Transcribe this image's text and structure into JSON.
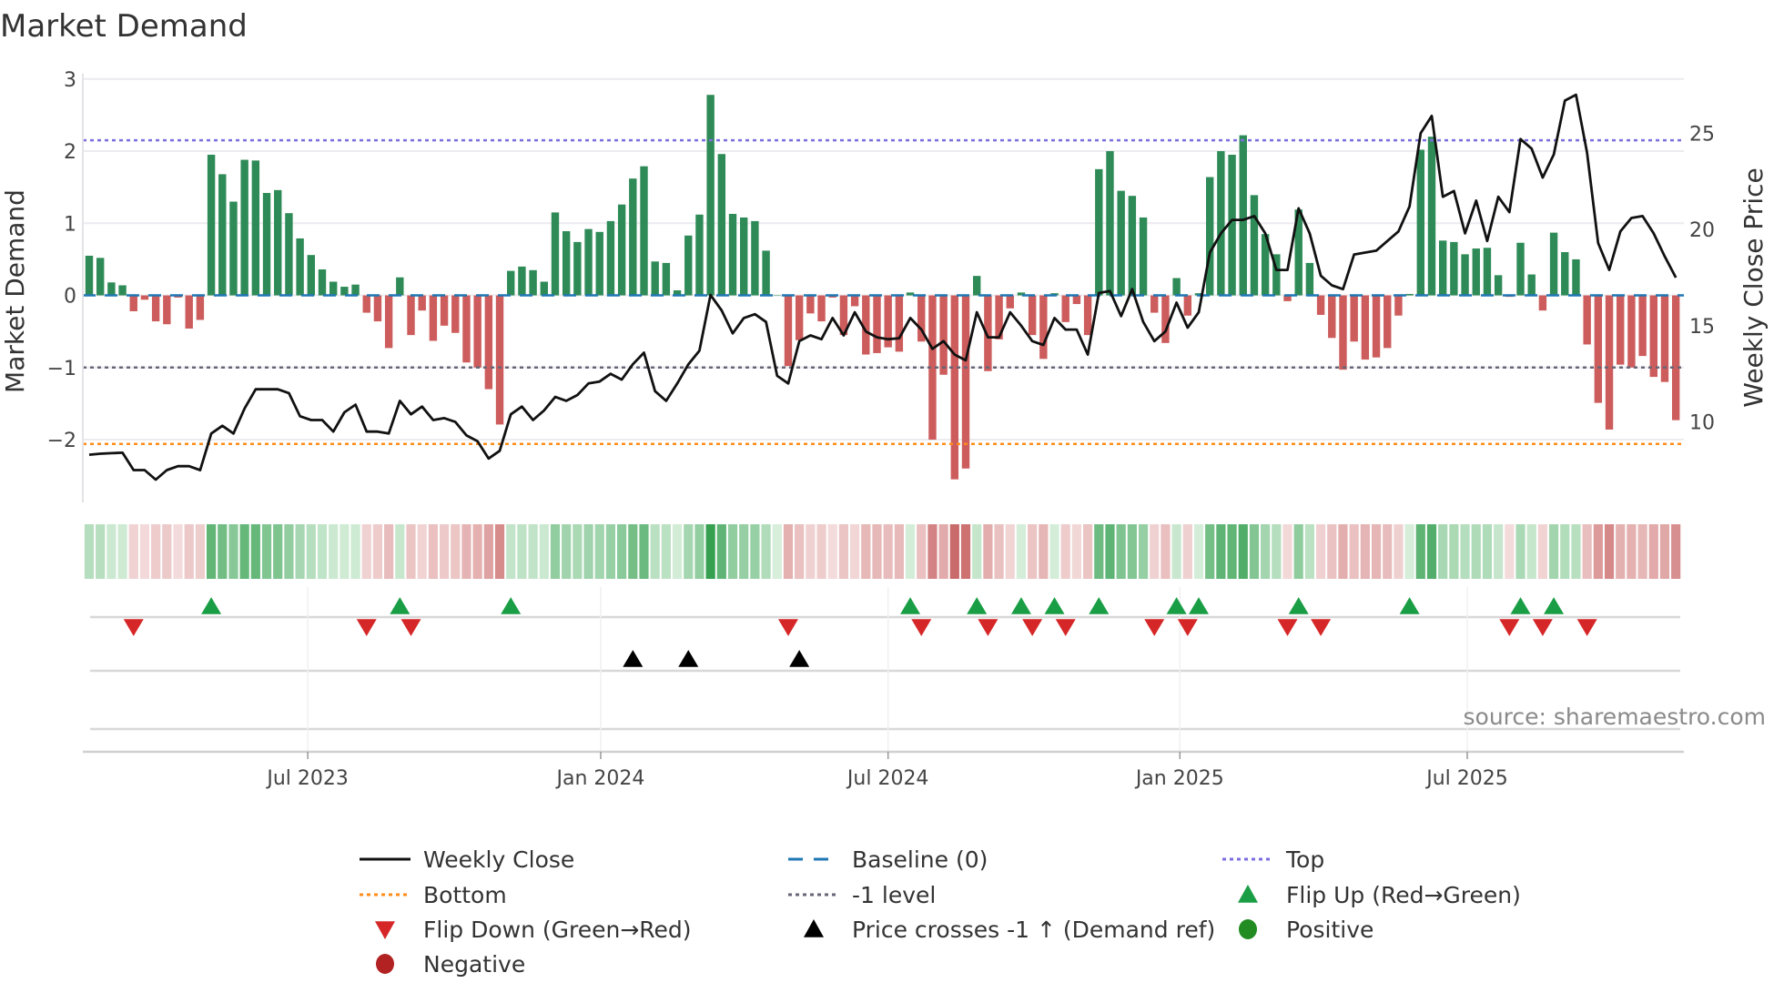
{
  "chart_data": {
    "type": "bar",
    "title": "Market Demand",
    "ylabel": "Market Demand",
    "y2label": "Weekly Close Price",
    "xunit": "week index",
    "ylim": [
      -2.87,
      3.0
    ],
    "y2lim": [
      5.82,
      27.82
    ],
    "yticks": [
      {
        "v": 3,
        "label": "3"
      },
      {
        "v": 2,
        "label": "2"
      },
      {
        "v": 1,
        "label": "1"
      },
      {
        "v": 0,
        "label": "0"
      },
      {
        "v": -1,
        "label": "−1"
      },
      {
        "v": -2,
        "label": "−2"
      }
    ],
    "y2ticks": [
      {
        "v": 25,
        "label": "25"
      },
      {
        "v": 20,
        "label": "20"
      },
      {
        "v": 15,
        "label": "15"
      },
      {
        "v": 10,
        "label": "10"
      }
    ],
    "xticks": [
      {
        "x": 19.7,
        "label": "Jul 2023"
      },
      {
        "x": 46.1,
        "label": "Jan 2024"
      },
      {
        "x": 72.0,
        "label": "Jul 2024"
      },
      {
        "x": 98.3,
        "label": "Jan 2025"
      },
      {
        "x": 124.2,
        "label": "Jul 2025"
      }
    ],
    "reference_lines": {
      "top": 2.15,
      "bottom": -2.06,
      "minus_one": -1,
      "baseline": 0
    },
    "demand": [
      0.55,
      0.52,
      0.18,
      0.14,
      -0.22,
      -0.06,
      -0.36,
      -0.4,
      -0.03,
      -0.46,
      -0.34,
      1.95,
      1.68,
      1.3,
      1.88,
      1.87,
      1.42,
      1.46,
      1.14,
      0.79,
      0.56,
      0.36,
      0.19,
      0.12,
      0.15,
      -0.24,
      -0.36,
      -0.73,
      0.25,
      -0.55,
      -0.21,
      -0.63,
      -0.42,
      -0.52,
      -0.93,
      -1.0,
      -1.3,
      -1.79,
      0.34,
      0.4,
      0.35,
      0.19,
      1.15,
      0.89,
      0.74,
      0.92,
      0.88,
      1.03,
      1.26,
      1.62,
      1.79,
      0.47,
      0.45,
      0.07,
      0.83,
      1.12,
      2.78,
      1.96,
      1.13,
      1.08,
      1.03,
      0.62,
      0.0,
      -0.98,
      -0.62,
      -0.25,
      -0.36,
      -0.03,
      -0.55,
      -0.15,
      -0.82,
      -0.8,
      -0.72,
      -0.78,
      0.04,
      -0.64,
      -2.0,
      -1.1,
      -2.55,
      -2.4,
      0.27,
      -1.05,
      -0.61,
      -0.18,
      0.04,
      -0.55,
      -0.88,
      0.03,
      -0.37,
      -0.12,
      -0.55,
      1.75,
      2.0,
      1.45,
      1.38,
      1.08,
      -0.24,
      -0.66,
      0.24,
      -0.28,
      0.03,
      1.64,
      2.0,
      1.95,
      2.22,
      1.39,
      0.85,
      0.57,
      -0.08,
      1.19,
      0.45,
      -0.27,
      -0.59,
      -1.03,
      -0.64,
      -0.89,
      -0.86,
      -0.73,
      -0.28,
      0.02,
      2.02,
      2.2,
      0.76,
      0.74,
      0.57,
      0.65,
      0.66,
      0.28,
      -0.02,
      0.73,
      0.29,
      -0.21,
      0.87,
      0.6,
      0.5,
      -0.68,
      -1.49,
      -1.86,
      -0.96,
      -1.0,
      -0.84,
      -1.13,
      -1.2,
      -1.73
    ],
    "weekly_close": [
      8.3,
      8.35,
      8.38,
      8.4,
      7.5,
      7.5,
      7.0,
      7.5,
      7.7,
      7.7,
      7.5,
      9.4,
      9.8,
      9.4,
      10.7,
      11.7,
      11.7,
      11.7,
      11.5,
      10.3,
      10.1,
      10.1,
      9.5,
      10.5,
      10.9,
      9.5,
      9.5,
      9.4,
      11.1,
      10.4,
      10.8,
      10.1,
      10.2,
      10.0,
      9.3,
      9.0,
      8.1,
      8.5,
      10.4,
      10.8,
      10.1,
      10.6,
      11.3,
      11.1,
      11.4,
      12.0,
      12.1,
      12.5,
      12.2,
      13.0,
      13.6,
      11.6,
      11.1,
      12.0,
      13.0,
      13.7,
      16.6,
      15.8,
      14.6,
      15.4,
      15.6,
      15.2,
      12.4,
      12.0,
      14.2,
      14.5,
      14.3,
      15.4,
      14.5,
      15.7,
      14.7,
      14.4,
      14.3,
      14.35,
      15.4,
      14.8,
      13.8,
      14.2,
      13.5,
      13.2,
      15.7,
      14.4,
      14.4,
      15.7,
      15.0,
      14.2,
      14.0,
      15.4,
      14.8,
      14.8,
      13.5,
      16.7,
      16.8,
      15.5,
      16.9,
      15.2,
      14.2,
      14.7,
      16.2,
      14.9,
      15.7,
      18.8,
      19.8,
      20.5,
      20.5,
      20.7,
      19.8,
      17.9,
      17.9,
      21.1,
      19.8,
      17.6,
      17.1,
      16.9,
      18.7,
      18.8,
      18.9,
      19.4,
      19.9,
      21.2,
      25.0,
      25.9,
      21.7,
      22.0,
      19.8,
      21.5,
      19.4,
      21.7,
      20.9,
      24.7,
      24.2,
      22.7,
      23.9,
      26.7,
      27.0,
      24.0,
      19.3,
      17.9,
      19.9,
      20.6,
      20.7,
      19.8,
      18.6,
      17.5
    ],
    "flip_up": [
      11,
      28,
      38,
      74,
      80,
      84,
      87,
      91,
      98,
      100,
      109,
      119,
      129,
      132
    ],
    "flip_down": [
      4,
      25,
      29,
      63,
      75,
      81,
      85,
      88,
      96,
      99,
      108,
      111,
      128,
      131,
      135
    ],
    "price_cross_up": [
      49,
      54,
      64
    ],
    "legend_placement": "bottom",
    "legend": [
      {
        "label": "Weekly Close",
        "symbol": "solid-line",
        "color": "#111111"
      },
      {
        "label": "Baseline (0)",
        "symbol": "dash-line",
        "color": "#1f77b4"
      },
      {
        "label": "Top",
        "symbol": "dot-line",
        "color": "#7b6ee0"
      },
      {
        "label": "Bottom",
        "symbol": "dot-line",
        "color": "#ff8c1a"
      },
      {
        "label": "-1 level",
        "symbol": "dot-line",
        "color": "#666677"
      },
      {
        "label": "Flip Up (Red→Green)",
        "symbol": "triangle-up",
        "color": "#1a9e45"
      },
      {
        "label": "Flip Down (Green→Red)",
        "symbol": "triangle-down",
        "color": "#d62728"
      },
      {
        "label": "Price crosses -1 ↑ (Demand ref)",
        "symbol": "triangle-up",
        "color": "#000000"
      },
      {
        "label": "Positive",
        "symbol": "circle",
        "color": "#228b22"
      },
      {
        "label": "Negative",
        "symbol": "circle",
        "color": "#b22222"
      }
    ],
    "colors": {
      "positive_bar": "#2e8b57",
      "negative_bar": "#cd5c5c",
      "price_line": "#111111"
    }
  },
  "source": "source: sharemaestro.com"
}
